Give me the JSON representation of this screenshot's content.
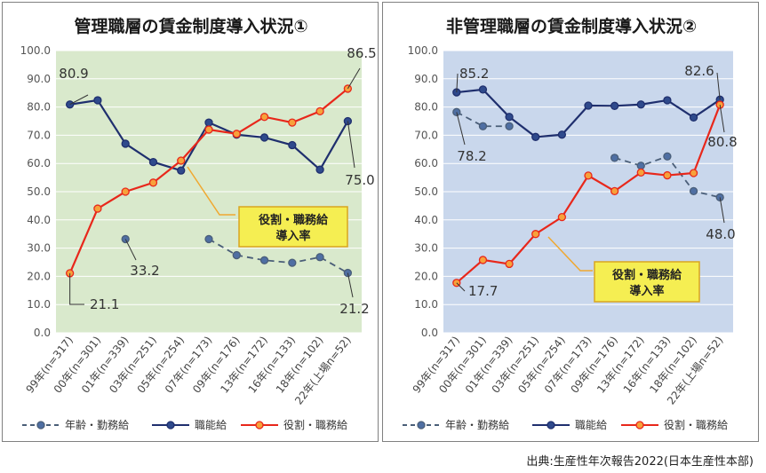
{
  "chart_data": [
    {
      "type": "line",
      "title": "管理職層の賃金制度導入状況①",
      "background": "#d9e9cc",
      "categories": [
        "99年(n=317)",
        "00年(n=301)",
        "01年(n=339)",
        "03年(n=251)",
        "05年(n=254)",
        "07年(n=173)",
        "09年(n=176)",
        "13年(n=172)",
        "16年(n=133)",
        "18年(n=102)",
        "22年(上場n=52)"
      ],
      "y_ticks": [
        "0.0",
        "10.0",
        "20.0",
        "30.0",
        "40.0",
        "50.0",
        "60.0",
        "70.0",
        "80.0",
        "90.0",
        "100.0"
      ],
      "ylim": [
        0,
        100
      ],
      "series": [
        {
          "name": "年齢・勤務給",
          "color": "#4a5e78",
          "style": "dashed",
          "values": [
            null,
            null,
            33.2,
            null,
            null,
            33.2,
            27.5,
            25.7,
            24.8,
            26.8,
            21.2
          ]
        },
        {
          "name": "職能給",
          "color": "#1f2f6e",
          "style": "solid",
          "values": [
            80.9,
            82.4,
            67.0,
            60.5,
            57.5,
            74.5,
            70.2,
            69.2,
            66.5,
            57.8,
            75.0
          ]
        },
        {
          "name": "役割・職務給",
          "color": "#e8271b",
          "style": "solid",
          "values": [
            21.1,
            44.0,
            50.0,
            53.2,
            61.0,
            72.0,
            70.5,
            76.5,
            74.5,
            78.5,
            86.5
          ]
        }
      ],
      "labels": [
        "80.9",
        "86.5",
        "75.0",
        "33.2",
        "21.1",
        "21.2"
      ],
      "callout": [
        "役割・職務給",
        "導入率"
      ]
    },
    {
      "type": "line",
      "title": "非管理職層の賃金制度導入状況②",
      "background": "#c9d7ec",
      "categories": [
        "99年(n=317)",
        "00年(n=301)",
        "01年(n=339)",
        "03年(n=251)",
        "05年(n=254)",
        "07年(n=173)",
        "09年(n=176)",
        "13年(n=172)",
        "16年(n=133)",
        "18年(n=102)",
        "22年(上場n=52)"
      ],
      "y_ticks": [
        "0.0",
        "10.0",
        "20.0",
        "30.0",
        "40.0",
        "50.0",
        "60.0",
        "70.0",
        "80.0",
        "90.0",
        "100.0"
      ],
      "ylim": [
        0,
        100
      ],
      "series": [
        {
          "name": "年齢・勤務給",
          "color": "#4a5e78",
          "style": "dashed",
          "values": [
            78.2,
            73.2,
            73.2,
            null,
            null,
            null,
            62.0,
            59.2,
            62.5,
            50.2,
            48.0
          ]
        },
        {
          "name": "職能給",
          "color": "#1f2f6e",
          "style": "solid",
          "values": [
            85.2,
            86.2,
            76.5,
            69.4,
            70.2,
            80.5,
            80.4,
            80.9,
            82.4,
            76.3,
            82.6
          ]
        },
        {
          "name": "役割・職務給",
          "color": "#e8271b",
          "style": "solid",
          "values": [
            17.7,
            25.8,
            24.4,
            35.0,
            41.0,
            55.7,
            50.2,
            56.8,
            55.8,
            56.6,
            80.8
          ]
        }
      ],
      "labels": [
        "85.2",
        "82.6",
        "78.2",
        "80.8",
        "48.0",
        "17.7"
      ],
      "callout": [
        "役割・職務給",
        "導入率"
      ]
    }
  ],
  "legend": [
    "年齢・勤務給",
    "職能給",
    "役割・職務給"
  ],
  "source": "出典:生産性年次報告2022(日本生産性本部)"
}
